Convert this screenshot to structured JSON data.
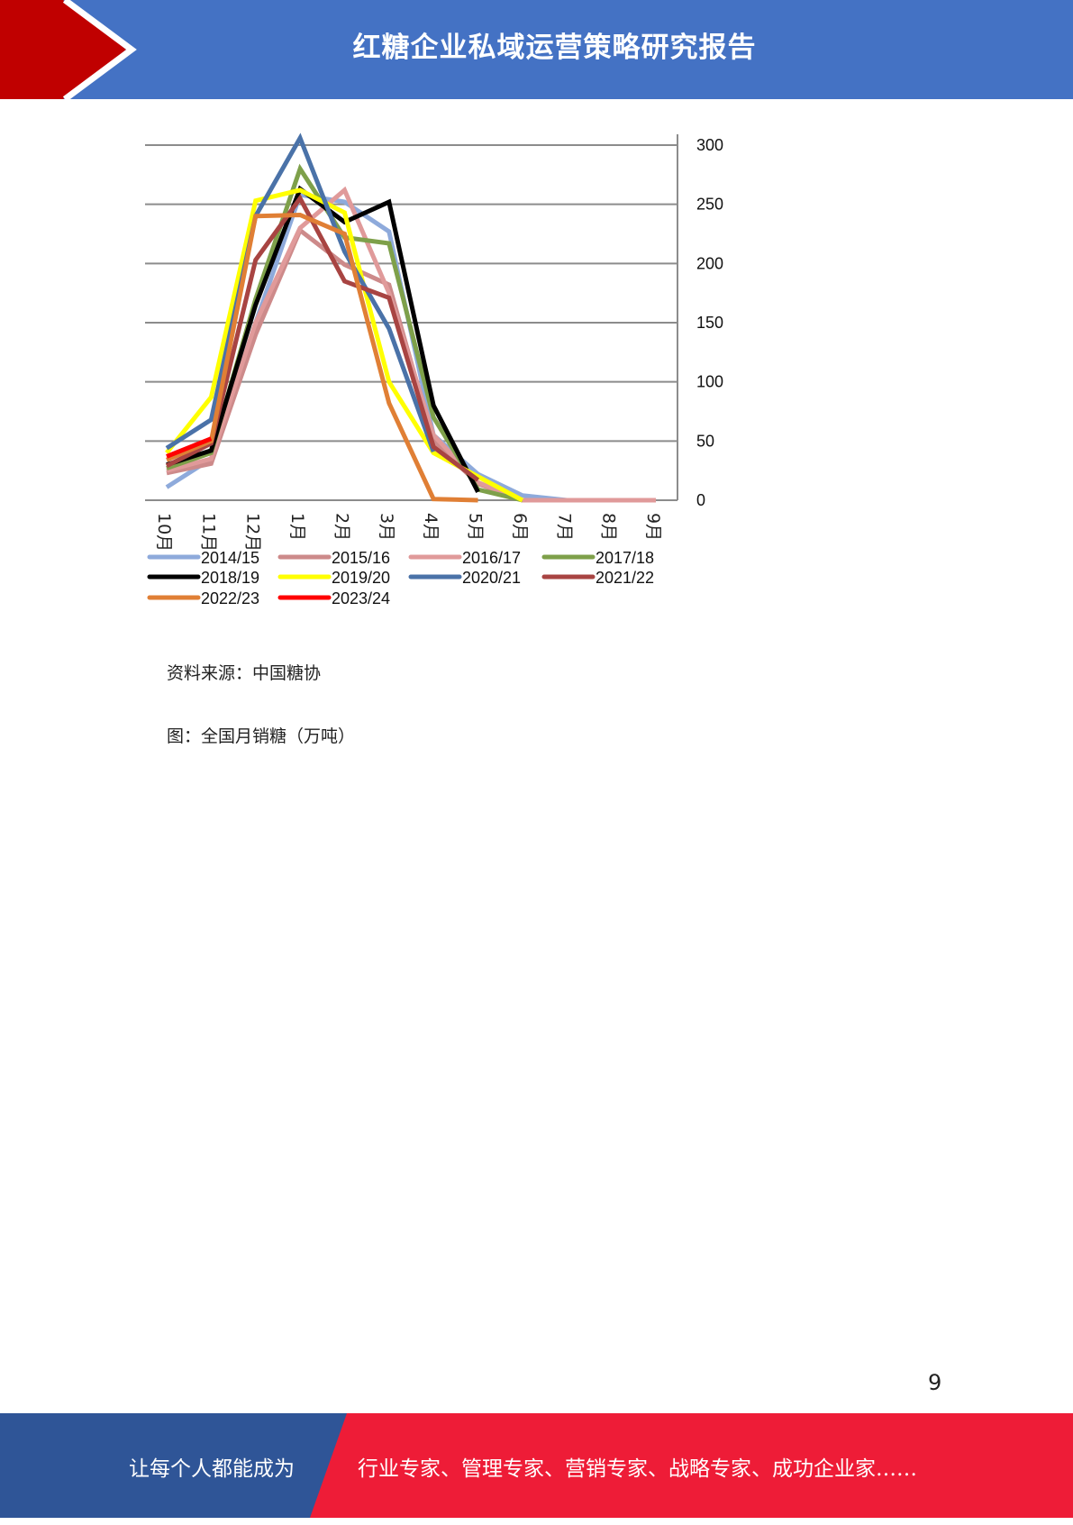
{
  "header": {
    "title": "红糖企业私域运营策略研究报告",
    "colors": {
      "red": "#c00000",
      "blue": "#4472c4"
    }
  },
  "chart_data": {
    "type": "line",
    "title": "",
    "xlabel": "",
    "ylabel": "",
    "categories": [
      "10月",
      "11月",
      "12月",
      "1月",
      "2月",
      "3月",
      "4月",
      "5月",
      "6月",
      "7月",
      "8月",
      "9月"
    ],
    "ylim": [
      0,
      300
    ],
    "yticks": [
      0,
      50,
      100,
      150,
      200,
      250,
      300
    ],
    "y_axis_side": "right",
    "grid": true,
    "legend_position": "bottom",
    "series": [
      {
        "name": "2014/15",
        "color": "#8eaadb",
        "values": [
          11,
          35,
          150,
          258,
          252,
          227,
          55,
          22,
          4,
          0,
          null,
          null
        ]
      },
      {
        "name": "2015/16",
        "color": "#cd8a8a",
        "values": [
          23,
          31,
          140,
          228,
          199,
          182,
          50,
          14,
          0,
          null,
          null,
          null
        ]
      },
      {
        "name": "2016/17",
        "color": "#e09a9a",
        "values": [
          25,
          35,
          150,
          230,
          262,
          175,
          55,
          15,
          0,
          0,
          0,
          0
        ]
      },
      {
        "name": "2017/18",
        "color": "#7ea04a",
        "values": [
          27,
          40,
          170,
          280,
          222,
          217,
          70,
          9,
          0,
          null,
          null,
          null
        ]
      },
      {
        "name": "2018/19",
        "color": "#000000",
        "values": [
          30,
          42,
          165,
          263,
          235,
          252,
          80,
          7,
          null,
          null,
          null,
          null
        ]
      },
      {
        "name": "2019/20",
        "color": "#ffff00",
        "values": [
          40,
          87,
          253,
          262,
          243,
          100,
          40,
          20,
          0,
          null,
          null,
          null
        ]
      },
      {
        "name": "2020/21",
        "color": "#4a72a8",
        "values": [
          44,
          68,
          240,
          306,
          210,
          145,
          41,
          null,
          null,
          null,
          null,
          null
        ]
      },
      {
        "name": "2021/22",
        "color": "#a84442",
        "values": [
          29,
          48,
          203,
          255,
          185,
          171,
          45,
          17,
          null,
          null,
          null,
          null
        ]
      },
      {
        "name": "2022/23",
        "color": "#e07f35",
        "values": [
          34,
          50,
          240,
          241,
          225,
          82,
          1,
          0,
          null,
          null,
          null,
          null
        ]
      },
      {
        "name": "2023/24",
        "color": "#ff0000",
        "values": [
          37,
          52,
          null,
          null,
          null,
          null,
          null,
          null,
          null,
          null,
          null,
          null
        ]
      }
    ]
  },
  "source": "资料来源：中国糖协",
  "caption": "图：全国月销糖（万吨）",
  "page_number": "9",
  "footer": {
    "left": "让每个人都能成为",
    "right": "行业专家、管理专家、营销专家、战略专家、成功企业家……",
    "colors": {
      "blue": "#2f5597",
      "red": "#ee1c37"
    }
  }
}
